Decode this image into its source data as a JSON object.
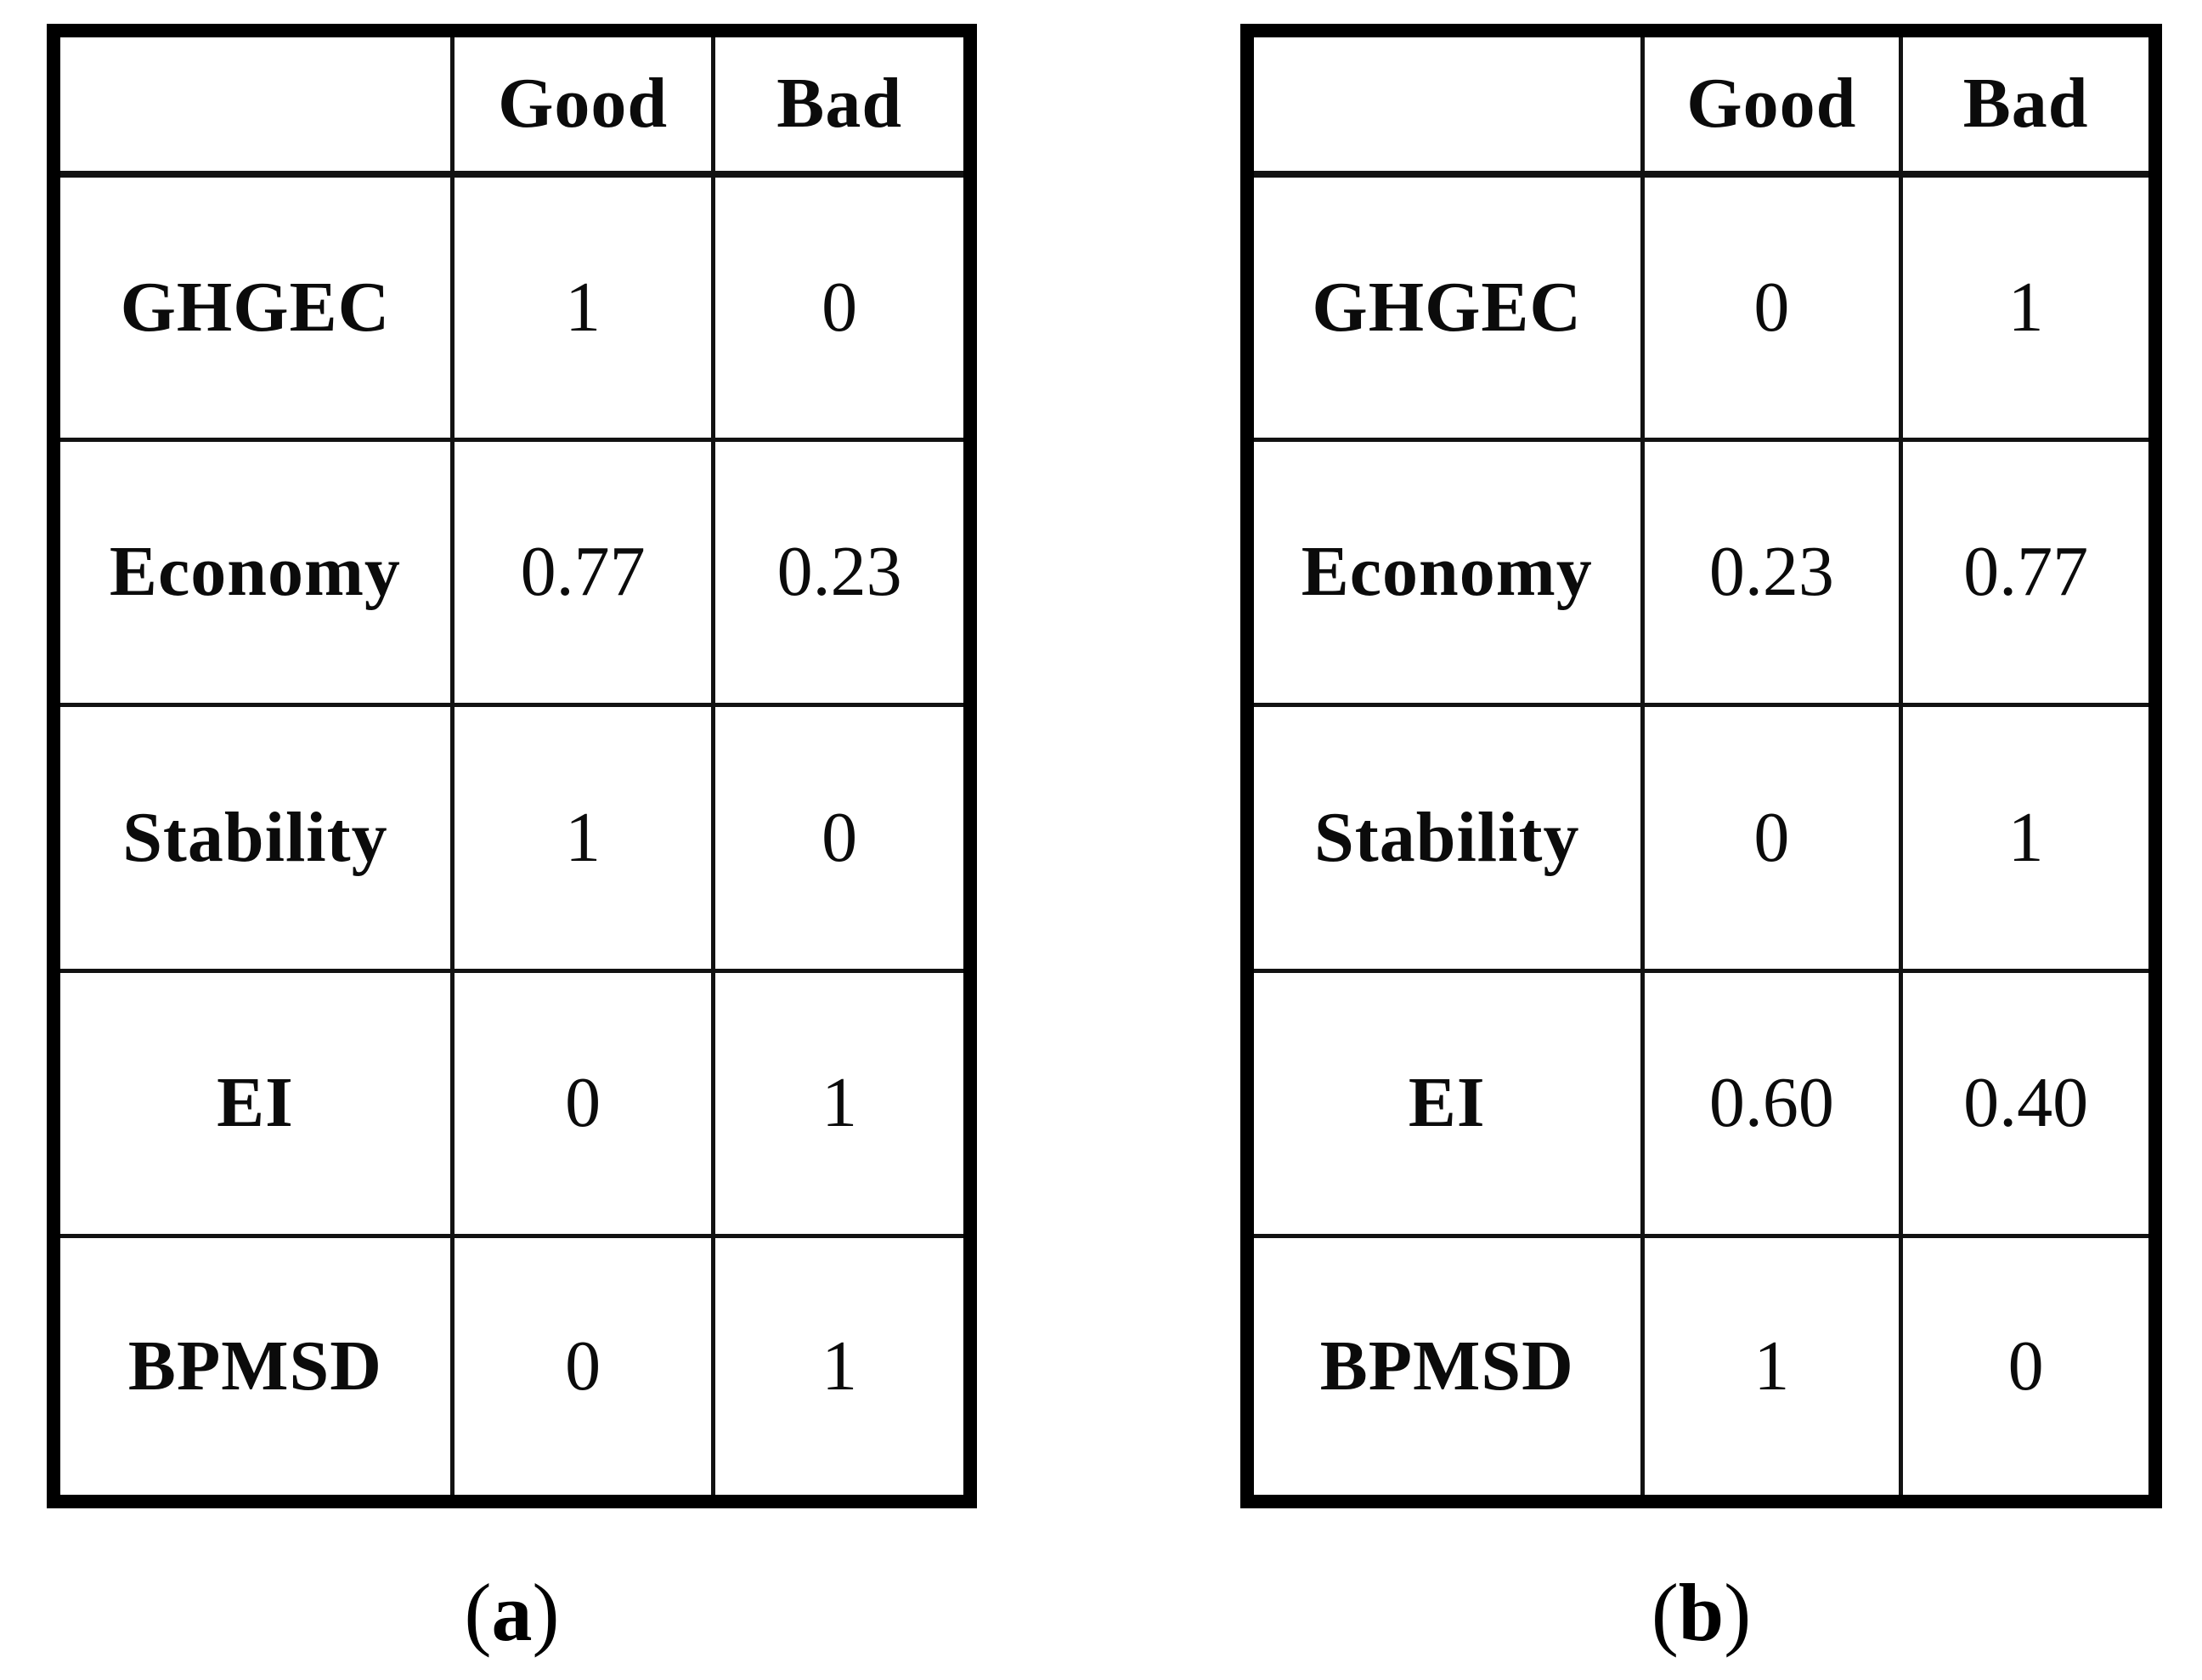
{
  "figure": {
    "tables": [
      {
        "caption_open": "(",
        "caption_letter": "a",
        "caption_close": ")",
        "columns": {
          "good": "Good",
          "bad": "Bad"
        },
        "rows": [
          {
            "label": "GHGEC",
            "good": "1",
            "bad": "0"
          },
          {
            "label": "Economy",
            "good": "0.77",
            "bad": "0.23"
          },
          {
            "label": "Stability",
            "good": "1",
            "bad": "0"
          },
          {
            "label": "EI",
            "good": "0",
            "bad": "1"
          },
          {
            "label": "BPMSD",
            "good": "0",
            "bad": "1"
          }
        ]
      },
      {
        "caption_open": "(",
        "caption_letter": "b",
        "caption_close": ")",
        "columns": {
          "good": "Good",
          "bad": "Bad"
        },
        "rows": [
          {
            "label": "GHGEC",
            "good": "0",
            "bad": "1"
          },
          {
            "label": "Economy",
            "good": "0.23",
            "bad": "0.77"
          },
          {
            "label": "Stability",
            "good": "0",
            "bad": "1"
          },
          {
            "label": "EI",
            "good": "0.60",
            "bad": "0.40"
          },
          {
            "label": "BPMSD",
            "good": "1",
            "bad": "0"
          }
        ]
      }
    ]
  },
  "chart_data": [
    {
      "type": "table",
      "title": "(a)",
      "columns": [
        "",
        "Good",
        "Bad"
      ],
      "rows": [
        [
          "GHGEC",
          1,
          0
        ],
        [
          "Economy",
          0.77,
          0.23
        ],
        [
          "Stability",
          1,
          0
        ],
        [
          "EI",
          0,
          1
        ],
        [
          "BPMSD",
          0,
          1
        ]
      ]
    },
    {
      "type": "table",
      "title": "(b)",
      "columns": [
        "",
        "Good",
        "Bad"
      ],
      "rows": [
        [
          "GHGEC",
          0,
          1
        ],
        [
          "Economy",
          0.23,
          0.77
        ],
        [
          "Stability",
          0,
          1
        ],
        [
          "EI",
          0.6,
          0.4
        ],
        [
          "BPMSD",
          1,
          0
        ]
      ]
    }
  ]
}
